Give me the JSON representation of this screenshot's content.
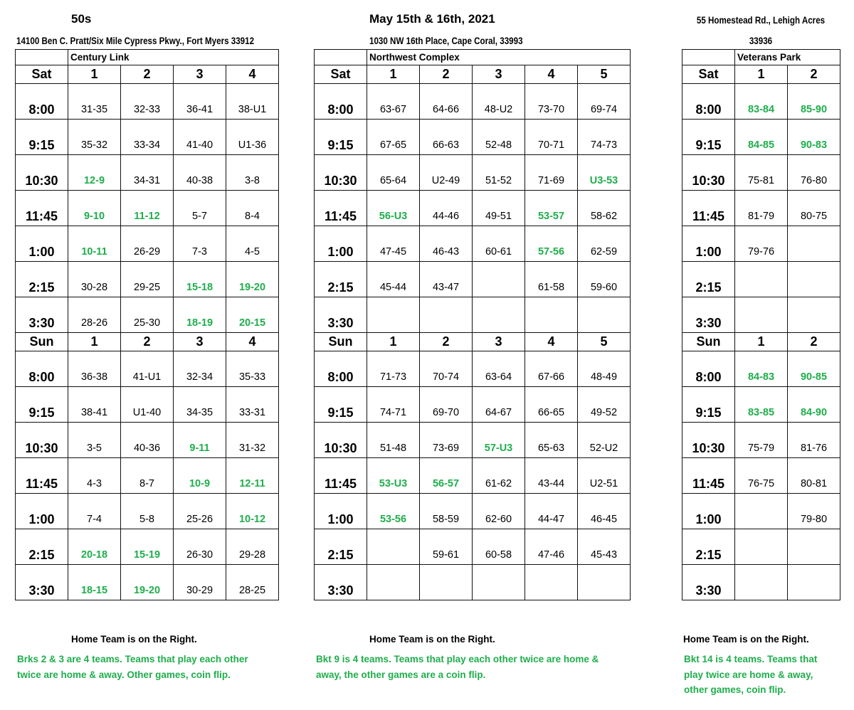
{
  "header": {
    "division": "50s",
    "dates": "May 15th & 16th, 2021",
    "right_address_line1": "55 Homestead Rd., Lehigh Acres",
    "right_address_line2": "33936",
    "left_address": "14100 Ben C. Pratt/Six Mile Cypress Pkwy., Fort Myers 33912",
    "middle_address": "1030 NW 16th Place, Cape Coral, 33993"
  },
  "colors": {
    "highlight": "#1fae4b",
    "text": "#000000"
  },
  "times": [
    "8:00",
    "9:15",
    "10:30",
    "11:45",
    "1:00",
    "2:15",
    "3:30"
  ],
  "tables": [
    {
      "venue": "Century Link",
      "fields": [
        "1",
        "2",
        "3",
        "4"
      ],
      "footer": "Home Team is on the Right.",
      "note": "Brks 2 & 3 are 4 teams. Teams that play each other twice are home & away. Other games, coin flip.",
      "days": [
        {
          "label": "Sat",
          "rows": [
            [
              "31-35",
              "32-33",
              "36-41",
              "38-U1"
            ],
            [
              "35-32",
              "33-34",
              "41-40",
              "U1-36"
            ],
            [
              {
                "v": "12-9",
                "hl": true
              },
              "34-31",
              "40-38",
              "3-8"
            ],
            [
              {
                "v": "9-10",
                "hl": true
              },
              {
                "v": "11-12",
                "hl": true
              },
              "5-7",
              "8-4"
            ],
            [
              {
                "v": "10-11",
                "hl": true
              },
              "26-29",
              "7-3",
              "4-5"
            ],
            [
              "30-28",
              "29-25",
              {
                "v": "15-18",
                "hl": true
              },
              {
                "v": "19-20",
                "hl": true
              }
            ],
            [
              "28-26",
              "25-30",
              {
                "v": "18-19",
                "hl": true
              },
              {
                "v": "20-15",
                "hl": true
              }
            ]
          ]
        },
        {
          "label": "Sun",
          "rows": [
            [
              "36-38",
              "41-U1",
              "32-34",
              "35-33"
            ],
            [
              "38-41",
              "U1-40",
              "34-35",
              "33-31"
            ],
            [
              "3-5",
              "40-36",
              {
                "v": "9-11",
                "hl": true
              },
              "31-32"
            ],
            [
              "4-3",
              "8-7",
              {
                "v": "10-9",
                "hl": true
              },
              {
                "v": "12-11",
                "hl": true
              }
            ],
            [
              "7-4",
              "5-8",
              "25-26",
              {
                "v": "10-12",
                "hl": true
              }
            ],
            [
              {
                "v": "20-18",
                "hl": true
              },
              {
                "v": "15-19",
                "hl": true
              },
              "26-30",
              "29-28"
            ],
            [
              {
                "v": "18-15",
                "hl": true
              },
              {
                "v": "19-20",
                "hl": true
              },
              "30-29",
              "28-25"
            ]
          ]
        }
      ]
    },
    {
      "venue": "Northwest Complex",
      "fields": [
        "1",
        "2",
        "3",
        "4",
        "5"
      ],
      "footer": "Home Team is on the Right.",
      "note": "Bkt 9 is 4 teams. Teams that play each other twice are home & away, the other games are a coin flip.",
      "days": [
        {
          "label": "Sat",
          "rows": [
            [
              "63-67",
              "64-66",
              "48-U2",
              "73-70",
              "69-74"
            ],
            [
              "67-65",
              "66-63",
              "52-48",
              "70-71",
              "74-73"
            ],
            [
              "65-64",
              "U2-49",
              "51-52",
              "71-69",
              {
                "v": "U3-53",
                "hl": true
              }
            ],
            [
              {
                "v": "56-U3",
                "hl": true
              },
              "44-46",
              "49-51",
              {
                "v": "53-57",
                "hl": true
              },
              "58-62"
            ],
            [
              "47-45",
              "46-43",
              "60-61",
              {
                "v": "57-56",
                "hl": true
              },
              "62-59"
            ],
            [
              "45-44",
              "43-47",
              "",
              "61-58",
              "59-60"
            ],
            [
              "",
              "",
              "",
              "",
              ""
            ]
          ]
        },
        {
          "label": "Sun",
          "rows": [
            [
              "71-73",
              "70-74",
              "63-64",
              "67-66",
              "48-49"
            ],
            [
              "74-71",
              "69-70",
              "64-67",
              "66-65",
              "49-52"
            ],
            [
              "51-48",
              "73-69",
              {
                "v": "57-U3",
                "hl": true
              },
              "65-63",
              "52-U2"
            ],
            [
              {
                "v": "53-U3",
                "hl": true
              },
              {
                "v": "56-57",
                "hl": true
              },
              "61-62",
              "43-44",
              "U2-51"
            ],
            [
              {
                "v": "53-56",
                "hl": true
              },
              "58-59",
              "62-60",
              "44-47",
              "46-45"
            ],
            [
              "",
              "59-61",
              "60-58",
              "47-46",
              "45-43"
            ],
            [
              "",
              "",
              "",
              "",
              ""
            ]
          ]
        }
      ]
    },
    {
      "venue": "Veterans Park",
      "fields": [
        "1",
        "2"
      ],
      "footer": "Home Team is on the Right.",
      "note": "Bkt 14 is 4 teams. Teams that play twice are home & away, other games, coin flip.",
      "days": [
        {
          "label": "Sat",
          "rows": [
            [
              {
                "v": "83-84",
                "hl": true
              },
              {
                "v": "85-90",
                "hl": true
              }
            ],
            [
              {
                "v": "84-85",
                "hl": true
              },
              {
                "v": "90-83",
                "hl": true
              }
            ],
            [
              "75-81",
              "76-80"
            ],
            [
              "81-79",
              "80-75"
            ],
            [
              "79-76",
              ""
            ],
            [
              "",
              ""
            ],
            [
              "",
              ""
            ]
          ]
        },
        {
          "label": "Sun",
          "rows": [
            [
              {
                "v": "84-83",
                "hl": true
              },
              {
                "v": "90-85",
                "hl": true
              }
            ],
            [
              {
                "v": "83-85",
                "hl": true
              },
              {
                "v": "84-90",
                "hl": true
              }
            ],
            [
              "75-79",
              "81-76"
            ],
            [
              "76-75",
              "80-81"
            ],
            [
              "",
              "79-80"
            ],
            [
              "",
              ""
            ],
            [
              "",
              ""
            ]
          ]
        }
      ]
    }
  ]
}
